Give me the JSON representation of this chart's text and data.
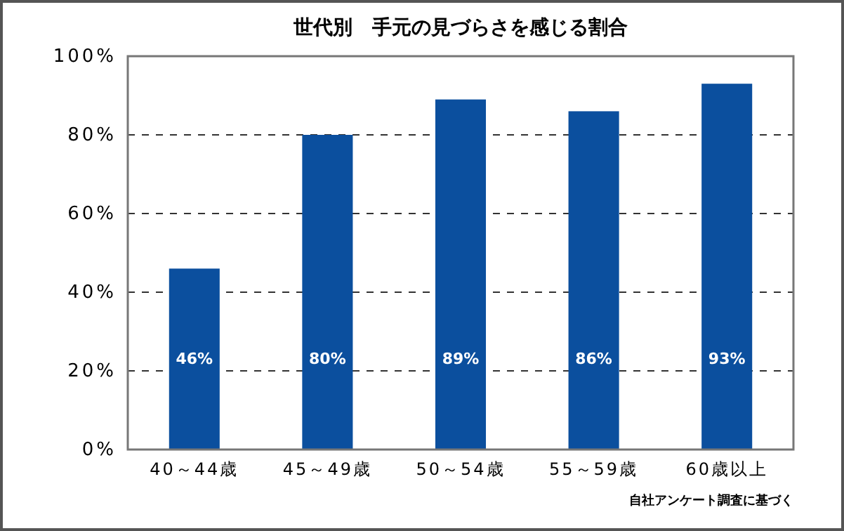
{
  "chart_data": {
    "type": "bar",
    "title": "世代別　手元の見づらさを感じる割合",
    "categories": [
      "40～44歳",
      "45～49歳",
      "50～54歳",
      "55～59歳",
      "60歳以上"
    ],
    "values": [
      46,
      80,
      89,
      86,
      93
    ],
    "color": "#0b4f9e",
    "value_labels": [
      "46%",
      "80%",
      "89%",
      "86%",
      "93%"
    ],
    "ylim": [
      0,
      100
    ],
    "yticks": [
      {
        "value": 0,
        "label": "0%"
      },
      {
        "value": 20,
        "label": "20%"
      },
      {
        "value": 40,
        "label": "40%"
      },
      {
        "value": 60,
        "label": "60%"
      },
      {
        "value": 80,
        "label": "80%"
      },
      {
        "value": 100,
        "label": "100%"
      }
    ],
    "grid": "y",
    "line_style": "dashed",
    "annotations": [
      "自社アンケート調査に基づく"
    ]
  }
}
